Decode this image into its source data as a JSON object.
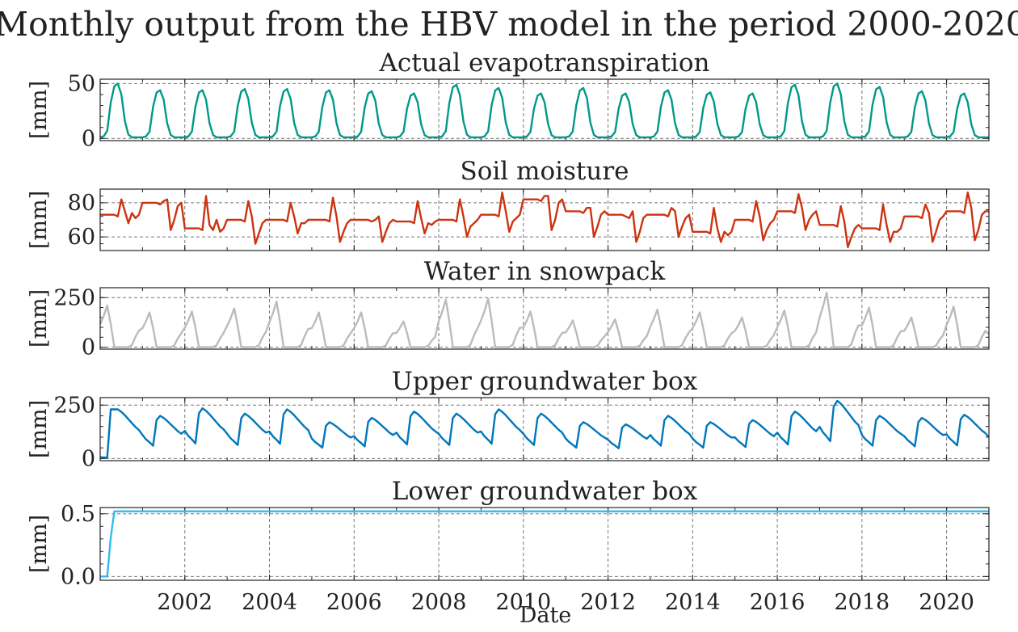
{
  "chart_data": {
    "type": "line",
    "title": "Monthly output from the HBV model in the period 2000-2020",
    "xlabel": "Date",
    "xlim": [
      "2000-01",
      "2021-01"
    ],
    "x_ticks": [
      "2002",
      "2004",
      "2006",
      "2008",
      "2010",
      "2012",
      "2014",
      "2016",
      "2018",
      "2020"
    ],
    "grid": true,
    "panels": [
      {
        "title": "Actual evapotranspiration",
        "ylabel": "[mm]",
        "ylim": [
          -2,
          54
        ],
        "yticks": [
          0,
          50
        ],
        "color": "#009988",
        "pattern": "seasonal_peak",
        "annual_peaks": [
          50,
          44,
          44,
          45,
          45,
          44,
          43,
          41,
          49,
          46,
          41,
          46,
          41,
          44,
          42,
          41,
          49,
          50,
          47,
          43,
          41,
          43
        ],
        "min_value": 1
      },
      {
        "title": "Soil moisture",
        "ylabel": "[mm]",
        "ylim": [
          52,
          88
        ],
        "yticks": [
          60,
          80
        ],
        "color": "#CC3311",
        "pattern": "soil",
        "annual_levels": [
          73,
          80,
          65,
          70,
          70,
          70,
          70,
          69,
          70,
          73,
          82,
          75,
          73,
          73,
          63,
          70,
          75,
          67,
          65,
          72,
          75,
          73
        ],
        "annual_minima": [
          68,
          64,
          64,
          56,
          62,
          57,
          57,
          62,
          60,
          63,
          64,
          60,
          57,
          60,
          57,
          58,
          64,
          54,
          57,
          57,
          58,
          70
        ],
        "annual_spikes": [
          82,
          81,
          84,
          81,
          80,
          83,
          70,
          81,
          82,
          86,
          84,
          77,
          71,
          77,
          77,
          81,
          85,
          78,
          79,
          79,
          86,
          72
        ]
      },
      {
        "title": "Water in snowpack",
        "ylabel": "[mm]",
        "ylim": [
          -10,
          300
        ],
        "yticks": [
          0,
          250
        ],
        "color": "#BBBBBB",
        "pattern": "snow",
        "annual_peaks": [
          210,
          175,
          180,
          195,
          230,
          175,
          175,
          130,
          240,
          245,
          180,
          135,
          140,
          190,
          175,
          150,
          185,
          275,
          200,
          150,
          205,
          120
        ]
      },
      {
        "title": "Upper groundwater box",
        "ylabel": "[mm]",
        "ylim": [
          -10,
          285
        ],
        "yticks": [
          0,
          250
        ],
        "color": "#0077BB",
        "pattern": "gw",
        "annual_peaks": [
          230,
          200,
          235,
          210,
          230,
          170,
          190,
          220,
          210,
          230,
          210,
          170,
          160,
          200,
          170,
          180,
          220,
          270,
          200,
          190,
          205,
          180
        ]
      },
      {
        "title": "Lower groundwater box",
        "ylabel": "[mm]",
        "ylim": [
          -0.03,
          0.55
        ],
        "yticks": [
          0.0,
          0.5
        ],
        "yticklabels": [
          "0.0",
          "0.5"
        ],
        "color": "#33BBEE",
        "pattern": "lower",
        "plateau": 0.52
      }
    ]
  }
}
